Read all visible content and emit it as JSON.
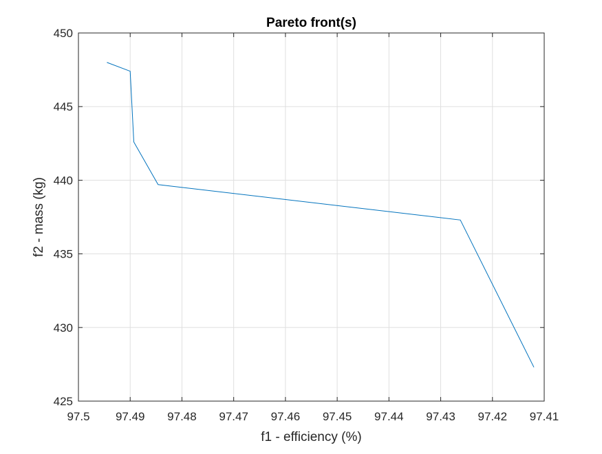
{
  "chart_data": {
    "type": "line",
    "title": "Pareto front(s)",
    "xlabel": "f1 - efficiency (%)",
    "ylabel": "f2 - mass (kg)",
    "x_reversed": true,
    "xlim": [
      97.41,
      97.5
    ],
    "ylim": [
      425,
      450
    ],
    "x_ticks": [
      97.5,
      97.49,
      97.48,
      97.47,
      97.46,
      97.45,
      97.44,
      97.43,
      97.42,
      97.41
    ],
    "x_tick_labels": [
      "97.5",
      "97.49",
      "97.48",
      "97.47",
      "97.46",
      "97.45",
      "97.44",
      "97.43",
      "97.42",
      "97.41"
    ],
    "y_ticks": [
      425,
      430,
      435,
      440,
      445,
      450
    ],
    "y_tick_labels": [
      "425",
      "430",
      "435",
      "440",
      "445",
      "450"
    ],
    "grid": true,
    "series": [
      {
        "color": "#0072bd",
        "x": [
          97.4945,
          97.49,
          97.4893,
          97.4846,
          97.4262,
          97.412
        ],
        "y": [
          448.0,
          447.4,
          442.6,
          439.7,
          437.3,
          427.3
        ]
      }
    ]
  }
}
